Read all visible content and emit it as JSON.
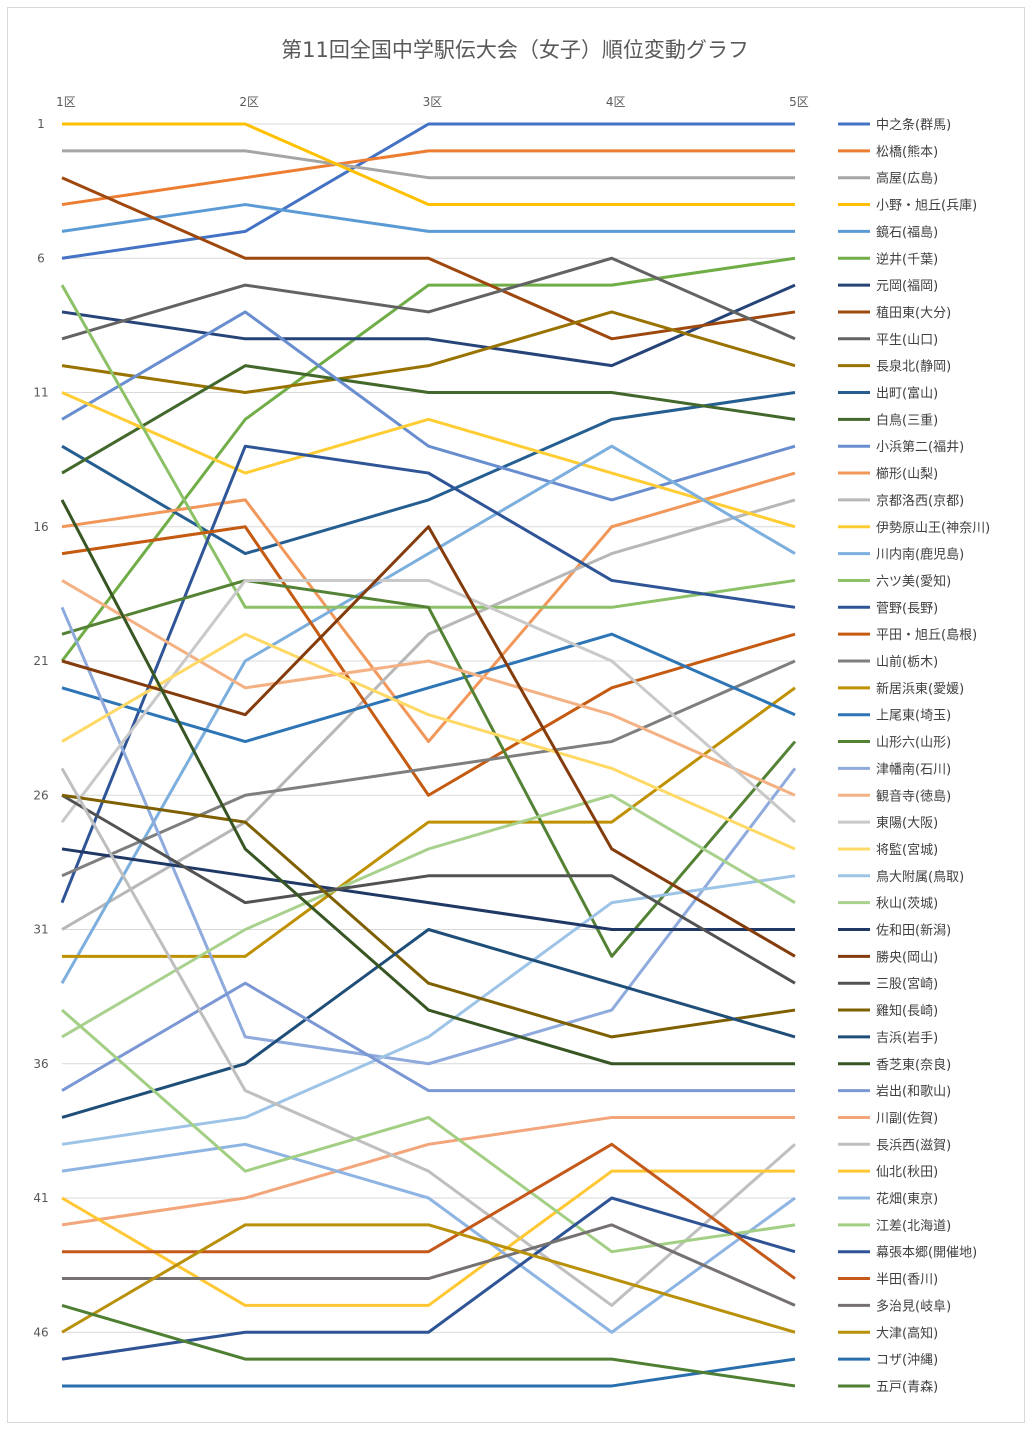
{
  "chart_data": {
    "type": "line",
    "title": "第11回全国中学駅伝大会（女子）順位変動グラフ",
    "categories": [
      "1区",
      "2区",
      "3区",
      "4区",
      "5区"
    ],
    "y_ticks": [
      1,
      6,
      11,
      16,
      21,
      26,
      31,
      36,
      41,
      46
    ],
    "ylim": [
      1,
      48
    ],
    "y_reversed": true,
    "grid": "horizontal",
    "legend_position": "right",
    "series": [
      {
        "name": "中之条(群馬)",
        "color": "#4472c4",
        "values": [
          6,
          5,
          1,
          1,
          1
        ]
      },
      {
        "name": "松橋(熊本)",
        "color": "#ed7d31",
        "values": [
          4,
          3,
          2,
          2,
          2
        ]
      },
      {
        "name": "高屋(広島)",
        "color": "#a5a5a5",
        "values": [
          2,
          2,
          3,
          3,
          3
        ]
      },
      {
        "name": "小野・旭丘(兵庫)",
        "color": "#ffc000",
        "values": [
          1,
          1,
          4,
          4,
          4
        ]
      },
      {
        "name": "鏡石(福島)",
        "color": "#5b9bd5",
        "values": [
          5,
          4,
          5,
          5,
          5
        ]
      },
      {
        "name": "逆井(千葉)",
        "color": "#70ad47",
        "values": [
          21,
          12,
          7,
          7,
          6
        ]
      },
      {
        "name": "元岡(福岡)",
        "color": "#264478",
        "values": [
          8,
          9,
          9,
          10,
          7
        ]
      },
      {
        "name": "稙田東(大分)",
        "color": "#9e480e",
        "values": [
          3,
          6,
          6,
          9,
          8
        ]
      },
      {
        "name": "平生(山口)",
        "color": "#636363",
        "values": [
          9,
          7,
          8,
          6,
          9
        ]
      },
      {
        "name": "長泉北(静岡)",
        "color": "#997300",
        "values": [
          10,
          11,
          10,
          8,
          10
        ]
      },
      {
        "name": "出町(富山)",
        "color": "#255e91",
        "values": [
          13,
          17,
          15,
          12,
          11
        ]
      },
      {
        "name": "白鳥(三重)",
        "color": "#43682b",
        "values": [
          14,
          10,
          11,
          11,
          12
        ]
      },
      {
        "name": "小浜第二(福井)",
        "color": "#698ed0",
        "values": [
          12,
          8,
          13,
          15,
          13
        ]
      },
      {
        "name": "櫛形(山梨)",
        "color": "#f1975a",
        "values": [
          16,
          15,
          24,
          16,
          14
        ]
      },
      {
        "name": "京都洛西(京都)",
        "color": "#b7b7b7",
        "values": [
          31,
          27,
          20,
          17,
          15
        ]
      },
      {
        "name": "伊勢原山王(神奈川)",
        "color": "#ffcd33",
        "values": [
          11,
          14,
          12,
          14,
          16
        ]
      },
      {
        "name": "川内南(鹿児島)",
        "color": "#7cafdd",
        "values": [
          33,
          21,
          17,
          13,
          17
        ]
      },
      {
        "name": "六ツ美(愛知)",
        "color": "#8cc168",
        "values": [
          7,
          19,
          19,
          19,
          18
        ]
      },
      {
        "name": "菅野(長野)",
        "color": "#2f5597",
        "values": [
          30,
          13,
          14,
          18,
          19
        ]
      },
      {
        "name": "平田・旭丘(島根)",
        "color": "#c55a11",
        "values": [
          17,
          16,
          26,
          22,
          20
        ]
      },
      {
        "name": "山前(栃木)",
        "color": "#7f7f7f",
        "values": [
          29,
          26,
          25,
          24,
          21
        ]
      },
      {
        "name": "新居浜東(愛媛)",
        "color": "#bf9000",
        "values": [
          32,
          32,
          27,
          27,
          22
        ]
      },
      {
        "name": "上尾東(埼玉)",
        "color": "#2e75b6",
        "values": [
          22,
          24,
          22,
          20,
          23
        ]
      },
      {
        "name": "山形六(山形)",
        "color": "#548235",
        "values": [
          20,
          18,
          19,
          32,
          24
        ]
      },
      {
        "name": "津幡南(石川)",
        "color": "#8faadc",
        "values": [
          19,
          35,
          36,
          34,
          25
        ]
      },
      {
        "name": "観音寺(徳島)",
        "color": "#f4b183",
        "values": [
          18,
          22,
          21,
          23,
          26
        ]
      },
      {
        "name": "東陽(大阪)",
        "color": "#c9c9c9",
        "values": [
          27,
          18,
          18,
          21,
          27
        ]
      },
      {
        "name": "将監(宮城)",
        "color": "#ffd966",
        "values": [
          24,
          20,
          23,
          25,
          28
        ]
      },
      {
        "name": "鳥大附属(鳥取)",
        "color": "#9dc3e6",
        "values": [
          39,
          38,
          35,
          30,
          29
        ]
      },
      {
        "name": "秋山(茨城)",
        "color": "#a9d18e",
        "values": [
          35,
          31,
          28,
          26,
          30
        ]
      },
      {
        "name": "佐和田(新潟)",
        "color": "#203864",
        "values": [
          28,
          29,
          30,
          31,
          31
        ]
      },
      {
        "name": "勝央(岡山)",
        "color": "#843c0c",
        "values": [
          21,
          23,
          16,
          28,
          32
        ]
      },
      {
        "name": "三股(宮崎)",
        "color": "#525252",
        "values": [
          26,
          30,
          29,
          29,
          33
        ]
      },
      {
        "name": "雞知(長崎)",
        "color": "#7f6000",
        "values": [
          26,
          27,
          33,
          35,
          34
        ]
      },
      {
        "name": "吉浜(岩手)",
        "color": "#1f4e79",
        "values": [
          38,
          36,
          31,
          33,
          35
        ]
      },
      {
        "name": "香芝東(奈良)",
        "color": "#375623",
        "values": [
          15,
          28,
          34,
          36,
          36
        ]
      },
      {
        "name": "岩出(和歌山)",
        "color": "#7b97d4",
        "values": [
          37,
          33,
          37,
          37,
          37
        ]
      },
      {
        "name": "川副(佐賀)",
        "color": "#f3a67b",
        "values": [
          42,
          41,
          39,
          38,
          38
        ]
      },
      {
        "name": "長浜西(滋賀)",
        "color": "#bfbfbf",
        "values": [
          25,
          37,
          40,
          45,
          39
        ]
      },
      {
        "name": "仙北(秋田)",
        "color": "#ffc733",
        "values": [
          41,
          45,
          45,
          40,
          40
        ]
      },
      {
        "name": "花畑(東京)",
        "color": "#8db4e2",
        "values": [
          40,
          39,
          41,
          46,
          41
        ]
      },
      {
        "name": "江差(北海道)",
        "color": "#a3cf84",
        "values": [
          34,
          40,
          38,
          43,
          42
        ]
      },
      {
        "name": "幕張本郷(開催地)",
        "color": "#2f5496",
        "values": [
          47,
          46,
          46,
          41,
          43
        ]
      },
      {
        "name": "半田(香川)",
        "color": "#c4591a",
        "values": [
          43,
          43,
          43,
          39,
          44
        ]
      },
      {
        "name": "多治見(岐阜)",
        "color": "#767171",
        "values": [
          44,
          44,
          44,
          42,
          45
        ]
      },
      {
        "name": "大津(高知)",
        "color": "#b8900a",
        "values": [
          46,
          42,
          42,
          44,
          46
        ]
      },
      {
        "name": "コザ(沖縄)",
        "color": "#2a6fad",
        "values": [
          48,
          48,
          48,
          48,
          47
        ]
      },
      {
        "name": "五戸(青森)",
        "color": "#4f7f32",
        "values": [
          45,
          47,
          47,
          47,
          48
        ]
      }
    ]
  }
}
